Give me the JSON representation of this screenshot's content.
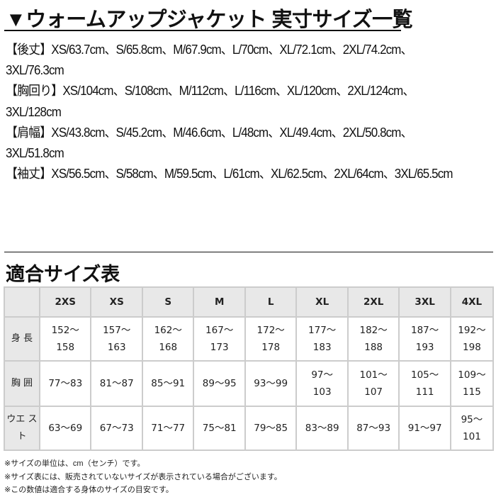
{
  "title": "▼ウォームアップジャケット 実寸サイズ一覧",
  "specs": [
    {
      "label": "【後丈】",
      "values": "XS/63.7cm、S/65.8cm、M/67.9cm、L/70cm、XL/72.1cm、2XL/74.2cm、3XL/76.3cm"
    },
    {
      "label": "【胸回り】",
      "values": "XS/104cm、S/108cm、M/112cm、L/116cm、XL/120cm、2XL/124cm、3XL/128cm"
    },
    {
      "label": "【肩幅】",
      "values": "XS/43.8cm、S/45.2cm、M/46.6cm、L/48cm、XL/49.4cm、2XL/50.8cm、3XL/51.8cm"
    },
    {
      "label": "【袖丈】",
      "values": "XS/56.5cm、S/58cm、M/59.5cm、L/61cm、XL/62.5cm、2XL/64cm、3XL/65.5cm"
    }
  ],
  "size_table": {
    "heading": "適合サイズ表",
    "columns": [
      "2XS",
      "XS",
      "S",
      "M",
      "L",
      "XL",
      "2XL",
      "3XL",
      "4XL"
    ],
    "rows": [
      {
        "label": "身 長",
        "cells": [
          [
            "152～",
            "158"
          ],
          [
            "157～",
            "163"
          ],
          [
            "162～",
            "168"
          ],
          [
            "167～",
            "173"
          ],
          [
            "172～",
            "178"
          ],
          [
            "177～",
            "183"
          ],
          [
            "182～",
            "188"
          ],
          [
            "187～",
            "193"
          ],
          [
            "192～",
            "198"
          ]
        ]
      },
      {
        "label": "胸 囲",
        "cells": [
          [
            "77～83"
          ],
          [
            "81～87"
          ],
          [
            "85～91"
          ],
          [
            "89～95"
          ],
          [
            "93～99"
          ],
          [
            "97～",
            "103"
          ],
          [
            "101～",
            "107"
          ],
          [
            "105～",
            "111"
          ],
          [
            "109～",
            "115"
          ]
        ]
      },
      {
        "label": "ウエ スト",
        "cells": [
          [
            "63～69"
          ],
          [
            "67～73"
          ],
          [
            "71～77"
          ],
          [
            "75～81"
          ],
          [
            "79～85"
          ],
          [
            "83～89"
          ],
          [
            "87～93"
          ],
          [
            "91～97"
          ],
          [
            "95～",
            "101"
          ]
        ]
      }
    ]
  },
  "notes": [
    "※サイズの単位は、cm（センチ）です。",
    "※サイズ表には、販売されていないサイズが表示されている場合がございます。",
    "※この数値は適合する身体のサイズの目安です。"
  ]
}
